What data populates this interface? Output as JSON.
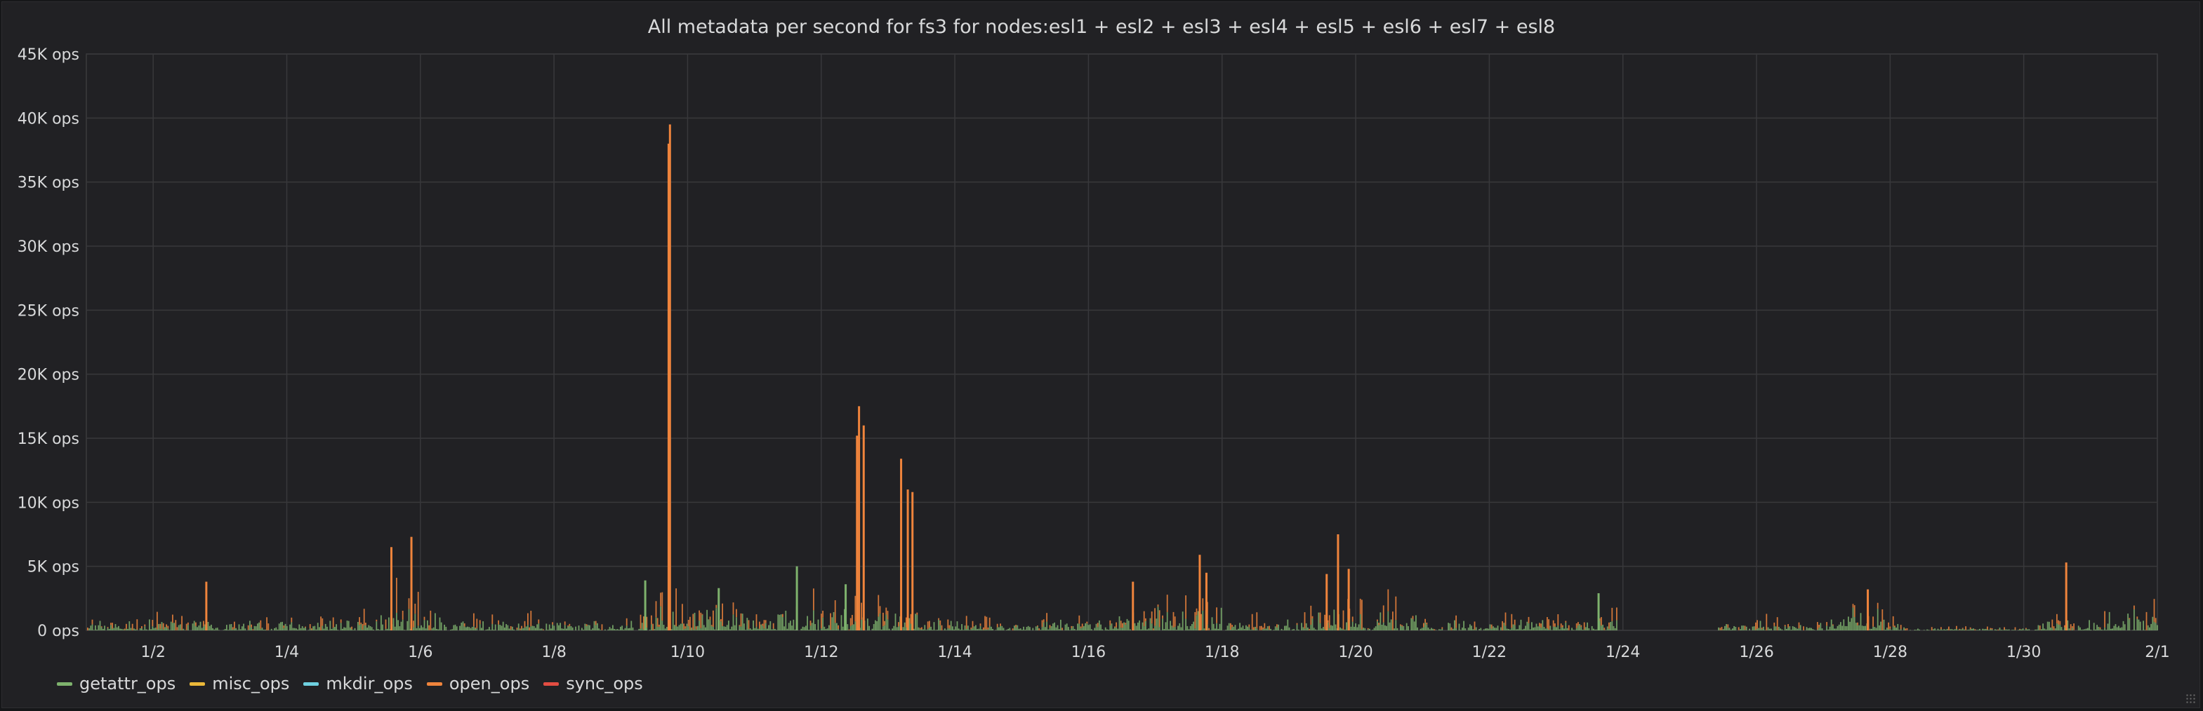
{
  "chart_data": {
    "type": "bar",
    "title": "All metadata per second for fs3 for nodes:esl1 + esl2 + esl3 + esl4 + esl5 + esl6 + esl7 + esl8",
    "y_ticks": [
      "45K ops",
      "40K ops",
      "35K ops",
      "30K ops",
      "25K ops",
      "20K ops",
      "15K ops",
      "10K ops",
      "5K ops",
      "0 ops"
    ],
    "x_ticks": [
      "1/2",
      "1/4",
      "1/6",
      "1/8",
      "1/10",
      "1/12",
      "1/14",
      "1/16",
      "1/18",
      "1/20",
      "1/22",
      "1/24",
      "1/26",
      "1/28",
      "1/30",
      "2/1"
    ],
    "ylim": [
      0,
      45000
    ],
    "xlim_days": [
      1,
      32
    ],
    "grid": true,
    "legend_position": "bottom-left",
    "series": [
      {
        "name": "getattr_ops",
        "color": "#7eb26d"
      },
      {
        "name": "misc_ops",
        "color": "#eab839"
      },
      {
        "name": "mkdir_ops",
        "color": "#6ed0e0"
      },
      {
        "name": "open_ops",
        "color": "#ef843c"
      },
      {
        "name": "sync_ops",
        "color": "#e24d42"
      }
    ],
    "spikes": [
      {
        "series": "open_ops",
        "day": 9.72,
        "value": 39500
      },
      {
        "series": "open_ops",
        "day": 9.7,
        "value": 38000
      },
      {
        "series": "open_ops",
        "day": 12.55,
        "value": 17500
      },
      {
        "series": "open_ops",
        "day": 12.52,
        "value": 15200
      },
      {
        "series": "open_ops",
        "day": 12.62,
        "value": 16000
      },
      {
        "series": "open_ops",
        "day": 13.18,
        "value": 13400
      },
      {
        "series": "open_ops",
        "day": 13.28,
        "value": 11000
      },
      {
        "series": "open_ops",
        "day": 13.35,
        "value": 10800
      },
      {
        "series": "open_ops",
        "day": 5.55,
        "value": 6500
      },
      {
        "series": "open_ops",
        "day": 5.85,
        "value": 7300
      },
      {
        "series": "open_ops",
        "day": 17.65,
        "value": 5900
      },
      {
        "series": "open_ops",
        "day": 17.75,
        "value": 4500
      },
      {
        "series": "open_ops",
        "day": 19.72,
        "value": 7500
      },
      {
        "series": "open_ops",
        "day": 19.55,
        "value": 4400
      },
      {
        "series": "open_ops",
        "day": 19.88,
        "value": 4800
      },
      {
        "series": "open_ops",
        "day": 30.62,
        "value": 5300
      },
      {
        "series": "open_ops",
        "day": 2.78,
        "value": 3800
      },
      {
        "series": "open_ops",
        "day": 16.65,
        "value": 3800
      },
      {
        "series": "open_ops",
        "day": 27.65,
        "value": 3200
      },
      {
        "series": "getattr_ops",
        "day": 11.62,
        "value": 5000
      },
      {
        "series": "getattr_ops",
        "day": 23.62,
        "value": 2900
      },
      {
        "series": "getattr_ops",
        "day": 12.35,
        "value": 3600
      },
      {
        "series": "getattr_ops",
        "day": 9.35,
        "value": 3900
      },
      {
        "series": "getattr_ops",
        "day": 10.45,
        "value": 3300
      }
    ]
  }
}
